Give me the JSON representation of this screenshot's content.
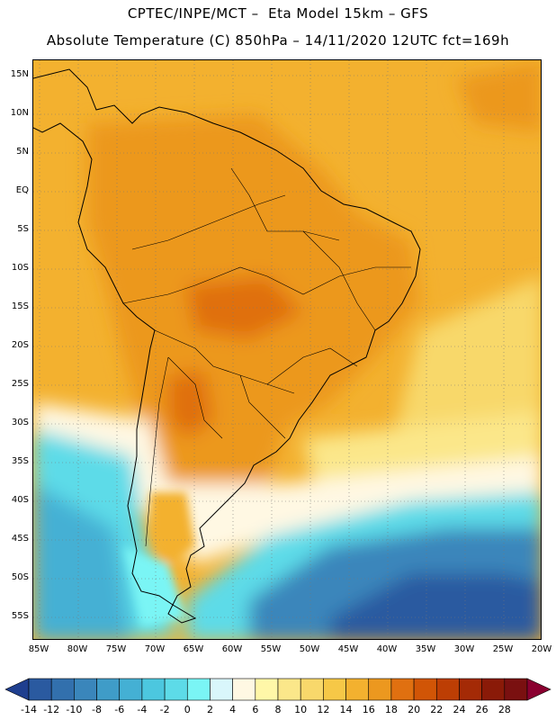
{
  "header": {
    "line1": "CPTEC/INPE/MCT –  Eta Model 15km – GFS",
    "line2": "Absolute Temperature (C) 850hPa – 14/11/2020 12UTC fct=169h"
  },
  "map": {
    "lat_labels": [
      "15N",
      "10N",
      "5N",
      "EQ",
      "5S",
      "10S",
      "15S",
      "20S",
      "25S",
      "30S",
      "35S",
      "40S",
      "45S",
      "50S",
      "55S"
    ],
    "lon_labels": [
      "85W",
      "80W",
      "75W",
      "70W",
      "65W",
      "60W",
      "55W",
      "50W",
      "45W",
      "40W",
      "35W",
      "30W",
      "25W",
      "20W"
    ]
  },
  "colorbar": {
    "labels": [
      "-14",
      "-12",
      "-10",
      "-8",
      "-6",
      "-4",
      "-2",
      "0",
      "2",
      "4",
      "6",
      "8",
      "10",
      "12",
      "14",
      "16",
      "18",
      "20",
      "22",
      "24",
      "26",
      "28"
    ],
    "colors": [
      "#1f3f8f",
      "#2a5aa0",
      "#3270ad",
      "#3a86bb",
      "#3f9cc8",
      "#44b0d4",
      "#4cc7df",
      "#5ddbe8",
      "#7af5f5",
      "#d9f6fb",
      "#fff8e3",
      "#fff7a8",
      "#fbe78a",
      "#f8d86b",
      "#f6c847",
      "#f3b12f",
      "#ec981f",
      "#e07010",
      "#d15506",
      "#bd3e04",
      "#a42a06",
      "#8a1a08",
      "#7a1010",
      "#8a0030"
    ]
  }
}
